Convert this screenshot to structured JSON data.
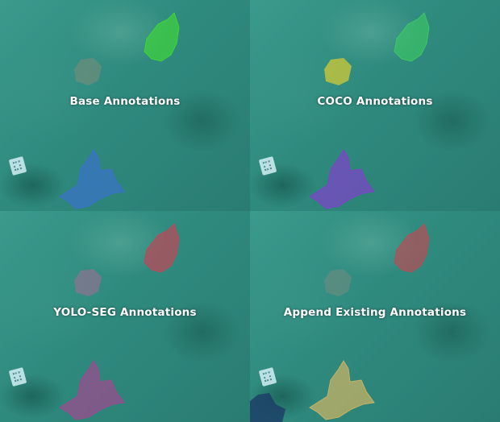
{
  "panels": [
    {
      "title": "Base Annotations",
      "colors": {
        "top": "#3fd43a",
        "small": "#7a8c78",
        "bottom": "#3a72c9"
      }
    },
    {
      "title": "COCO Annotations",
      "colors": {
        "top": "#3cc864",
        "small": "#c8c53a",
        "bottom": "#7b46c6"
      }
    },
    {
      "title": "YOLO-SEG Annotations",
      "colors": {
        "top": "#b84a5a",
        "small": "#8f7290",
        "bottom": "#9a4c8e"
      }
    },
    {
      "title": "Append Existing Annotations",
      "colors": {
        "top": "#b05058",
        "small": "#6f8a80",
        "bottom": "#c6b266",
        "extra": "#1c3f66"
      }
    }
  ]
}
